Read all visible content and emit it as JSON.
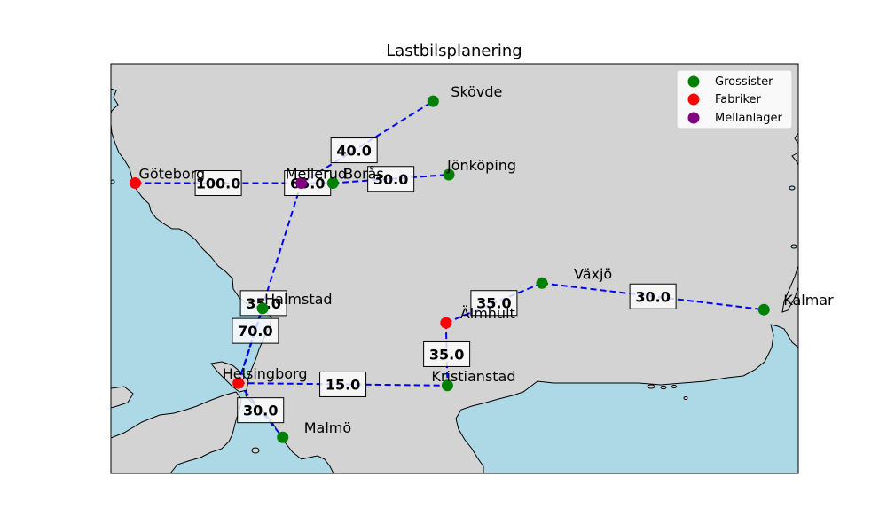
{
  "title": "Lastbilsplanering",
  "colors": {
    "land": "#d3d3d3",
    "sea": "#add8e6",
    "route": "#0000ff",
    "wholesaler": "#008000",
    "factory": "#ff0000",
    "warehouse": "#800080"
  },
  "legend": {
    "placement": "top-right",
    "entries": [
      {
        "label": "Grossister",
        "color": "#008000"
      },
      {
        "label": "Fabriker",
        "color": "#ff0000"
      },
      {
        "label": "Mellanlager",
        "color": "#800080"
      }
    ]
  },
  "chart_data": {
    "type": "map",
    "extent": {
      "lon": [
        11.8,
        16.6
      ],
      "lat": [
        55.3,
        58.7
      ]
    },
    "nodes": [
      {
        "name": "Skövde",
        "kind": "wholesaler",
        "lon": 14.05,
        "lat": 58.39
      },
      {
        "name": "Göteborg",
        "kind": "factory",
        "lon": 11.97,
        "lat": 57.71
      },
      {
        "name": "Mellerud",
        "kind": "warehouse",
        "lon": 13.13,
        "lat": 57.71
      },
      {
        "name": "Borås",
        "kind": "wholesaler",
        "lon": 13.35,
        "lat": 57.71
      },
      {
        "name": "Jönköping",
        "kind": "wholesaler",
        "lon": 14.16,
        "lat": 57.78
      },
      {
        "name": "Halmstad",
        "kind": "wholesaler",
        "lon": 12.86,
        "lat": 56.67
      },
      {
        "name": "Älmhult",
        "kind": "factory",
        "lon": 14.14,
        "lat": 56.55
      },
      {
        "name": "Växjö",
        "kind": "wholesaler",
        "lon": 14.81,
        "lat": 56.88
      },
      {
        "name": "Kalmar",
        "kind": "wholesaler",
        "lon": 16.36,
        "lat": 56.66
      },
      {
        "name": "Helsingborg",
        "kind": "factory",
        "lon": 12.69,
        "lat": 56.05
      },
      {
        "name": "Kristianstad",
        "kind": "wholesaler",
        "lon": 14.15,
        "lat": 56.03
      },
      {
        "name": "Malmö",
        "kind": "wholesaler",
        "lon": 13.0,
        "lat": 55.6
      }
    ],
    "edges": [
      {
        "from": "Göteborg",
        "to": "Mellerud",
        "value": "100.0"
      },
      {
        "from": "Mellerud",
        "to": "Skövde",
        "value": "40.0"
      },
      {
        "from": "Mellerud",
        "to": "Borås",
        "value": "65.0"
      },
      {
        "from": "Borås",
        "to": "Jönköping",
        "value": "30.0"
      },
      {
        "from": "Mellerud",
        "to": "Helsingborg",
        "value": "35.0"
      },
      {
        "from": "Helsingborg",
        "to": "Halmstad",
        "value": "70.0"
      },
      {
        "from": "Helsingborg",
        "to": "Kristianstad",
        "value": "15.0"
      },
      {
        "from": "Helsingborg",
        "to": "Malmö",
        "value": "30.0"
      },
      {
        "from": "Älmhult",
        "to": "Kristianstad",
        "value": "35.0"
      },
      {
        "from": "Älmhult",
        "to": "Växjö",
        "value": "35.0"
      },
      {
        "from": "Växjö",
        "to": "Kalmar",
        "value": "30.0"
      }
    ]
  }
}
